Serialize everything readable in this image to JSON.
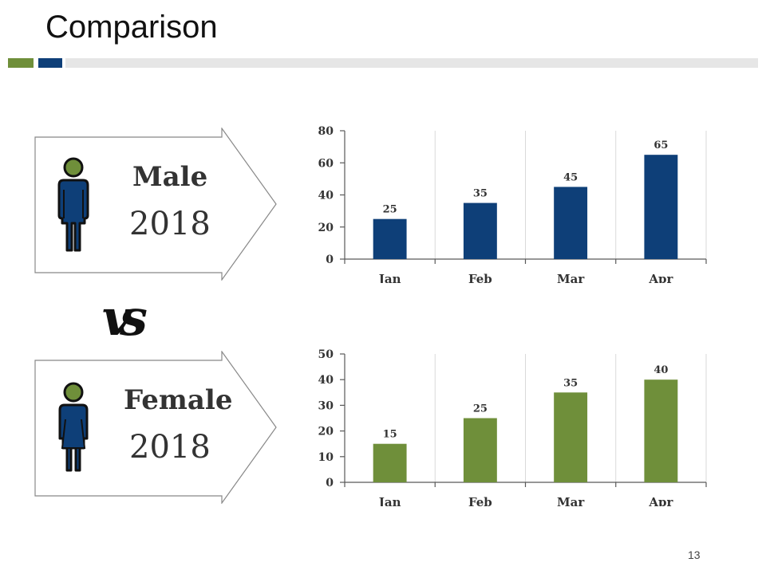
{
  "title": "Comparison",
  "colors": {
    "green": "#6f8f3a",
    "blue": "#0e3f78",
    "grid": "#d9d9d9",
    "axis": "#595959"
  },
  "male": {
    "heading": "Male",
    "year": "2018",
    "icon": "male-person-icon"
  },
  "female": {
    "heading": "Female",
    "year": "2018",
    "icon": "female-person-icon"
  },
  "vs_label": "vs",
  "page_number": "13",
  "chart_data": [
    {
      "type": "bar",
      "name": "male",
      "categories": [
        "Jan",
        "Feb",
        "Mar",
        "Apr"
      ],
      "values": [
        25,
        35,
        45,
        65
      ],
      "ylim": [
        0,
        80
      ],
      "yticks": [
        0,
        20,
        40,
        60,
        80
      ],
      "ytick_labels": [
        "0",
        "20",
        "40",
        "60",
        "80"
      ],
      "data_labels": [
        "25",
        "35",
        "45",
        "65"
      ],
      "color": "#0e3f78",
      "grid": true
    },
    {
      "type": "bar",
      "name": "female",
      "categories": [
        "Jan",
        "Feb",
        "Mar",
        "Apr"
      ],
      "values": [
        15,
        25,
        35,
        40
      ],
      "ylim": [
        0,
        50
      ],
      "yticks": [
        0,
        10,
        20,
        30,
        40,
        50
      ],
      "ytick_labels": [
        "0",
        "10",
        "20",
        "30",
        "40",
        "50"
      ],
      "data_labels": [
        "15",
        "25",
        "35",
        "40"
      ],
      "color": "#6f8f3a",
      "grid": true
    }
  ]
}
